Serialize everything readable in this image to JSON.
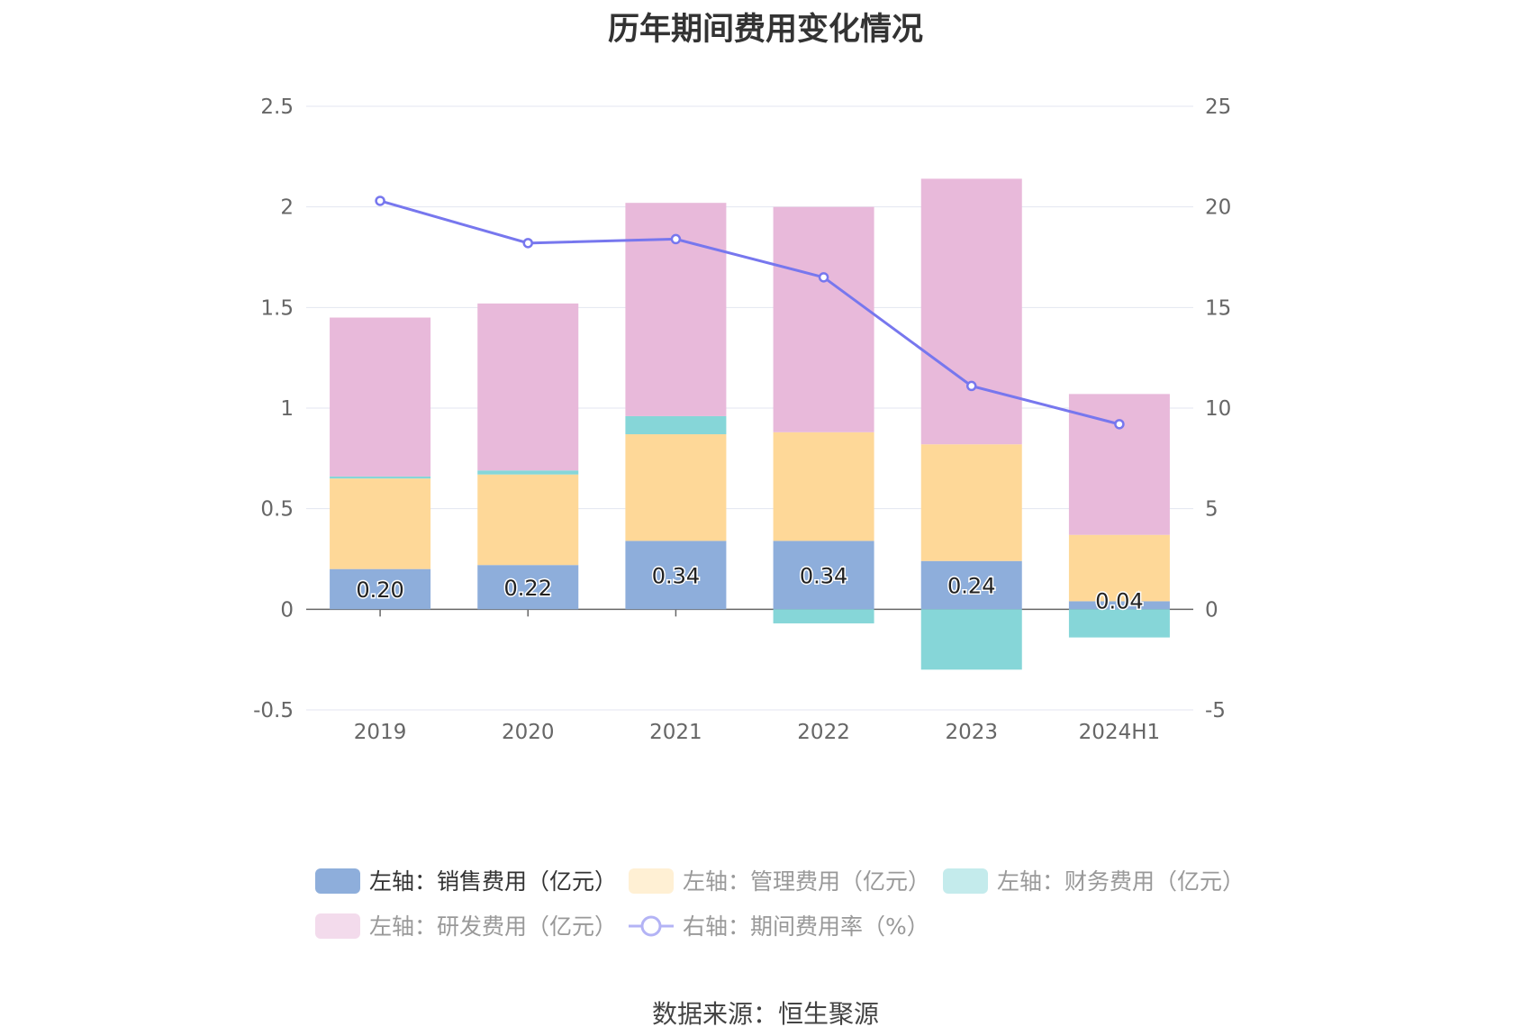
{
  "title": "历年期间费用变化情况",
  "source": "数据来源：恒生聚源",
  "chart_data": {
    "type": "bar",
    "stacked": true,
    "categories": [
      "2019",
      "2020",
      "2021",
      "2022",
      "2023",
      "2024H1"
    ],
    "left_axis": {
      "ylim": [
        -0.5,
        2.5
      ],
      "ticks": [
        "-0.5",
        "0",
        "0.5",
        "1",
        "1.5",
        "2",
        "2.5"
      ],
      "tick_values": [
        -0.5,
        0,
        0.5,
        1,
        1.5,
        2,
        2.5
      ]
    },
    "right_axis": {
      "ylim": [
        -5,
        25
      ],
      "ticks": [
        "-5",
        "0",
        "5",
        "10",
        "15",
        "20",
        "25"
      ],
      "tick_values": [
        -5,
        0,
        5,
        10,
        15,
        20,
        25
      ]
    },
    "grid": true,
    "series": [
      {
        "name": "左轴：销售费用（亿元）",
        "axis": "left",
        "type": "bar",
        "color": "#8eaedb",
        "values": [
          0.2,
          0.22,
          0.34,
          0.34,
          0.24,
          0.04
        ],
        "labels": [
          "0.20",
          "0.22",
          "0.34",
          "0.34",
          "0.24",
          "0.04"
        ]
      },
      {
        "name": "左轴：管理费用（亿元）",
        "axis": "left",
        "type": "bar",
        "color": "#fed898",
        "values": [
          0.45,
          0.45,
          0.53,
          0.54,
          0.58,
          0.33
        ]
      },
      {
        "name": "左轴：财务费用（亿元）",
        "axis": "left",
        "type": "bar",
        "color": "#86d6d8",
        "values": [
          0.01,
          0.02,
          0.09,
          -0.07,
          -0.3,
          -0.14
        ]
      },
      {
        "name": "左轴：研发费用（亿元）",
        "axis": "left",
        "type": "bar",
        "color": "#e8b9da",
        "values": [
          0.79,
          0.83,
          1.06,
          1.12,
          1.32,
          0.7
        ]
      },
      {
        "name": "右轴：期间费用率（%）",
        "axis": "right",
        "type": "line",
        "color": "#7777ee",
        "values": [
          20.3,
          18.2,
          18.4,
          16.5,
          11.1,
          9.2
        ]
      }
    ],
    "legend_position": "bottom"
  }
}
